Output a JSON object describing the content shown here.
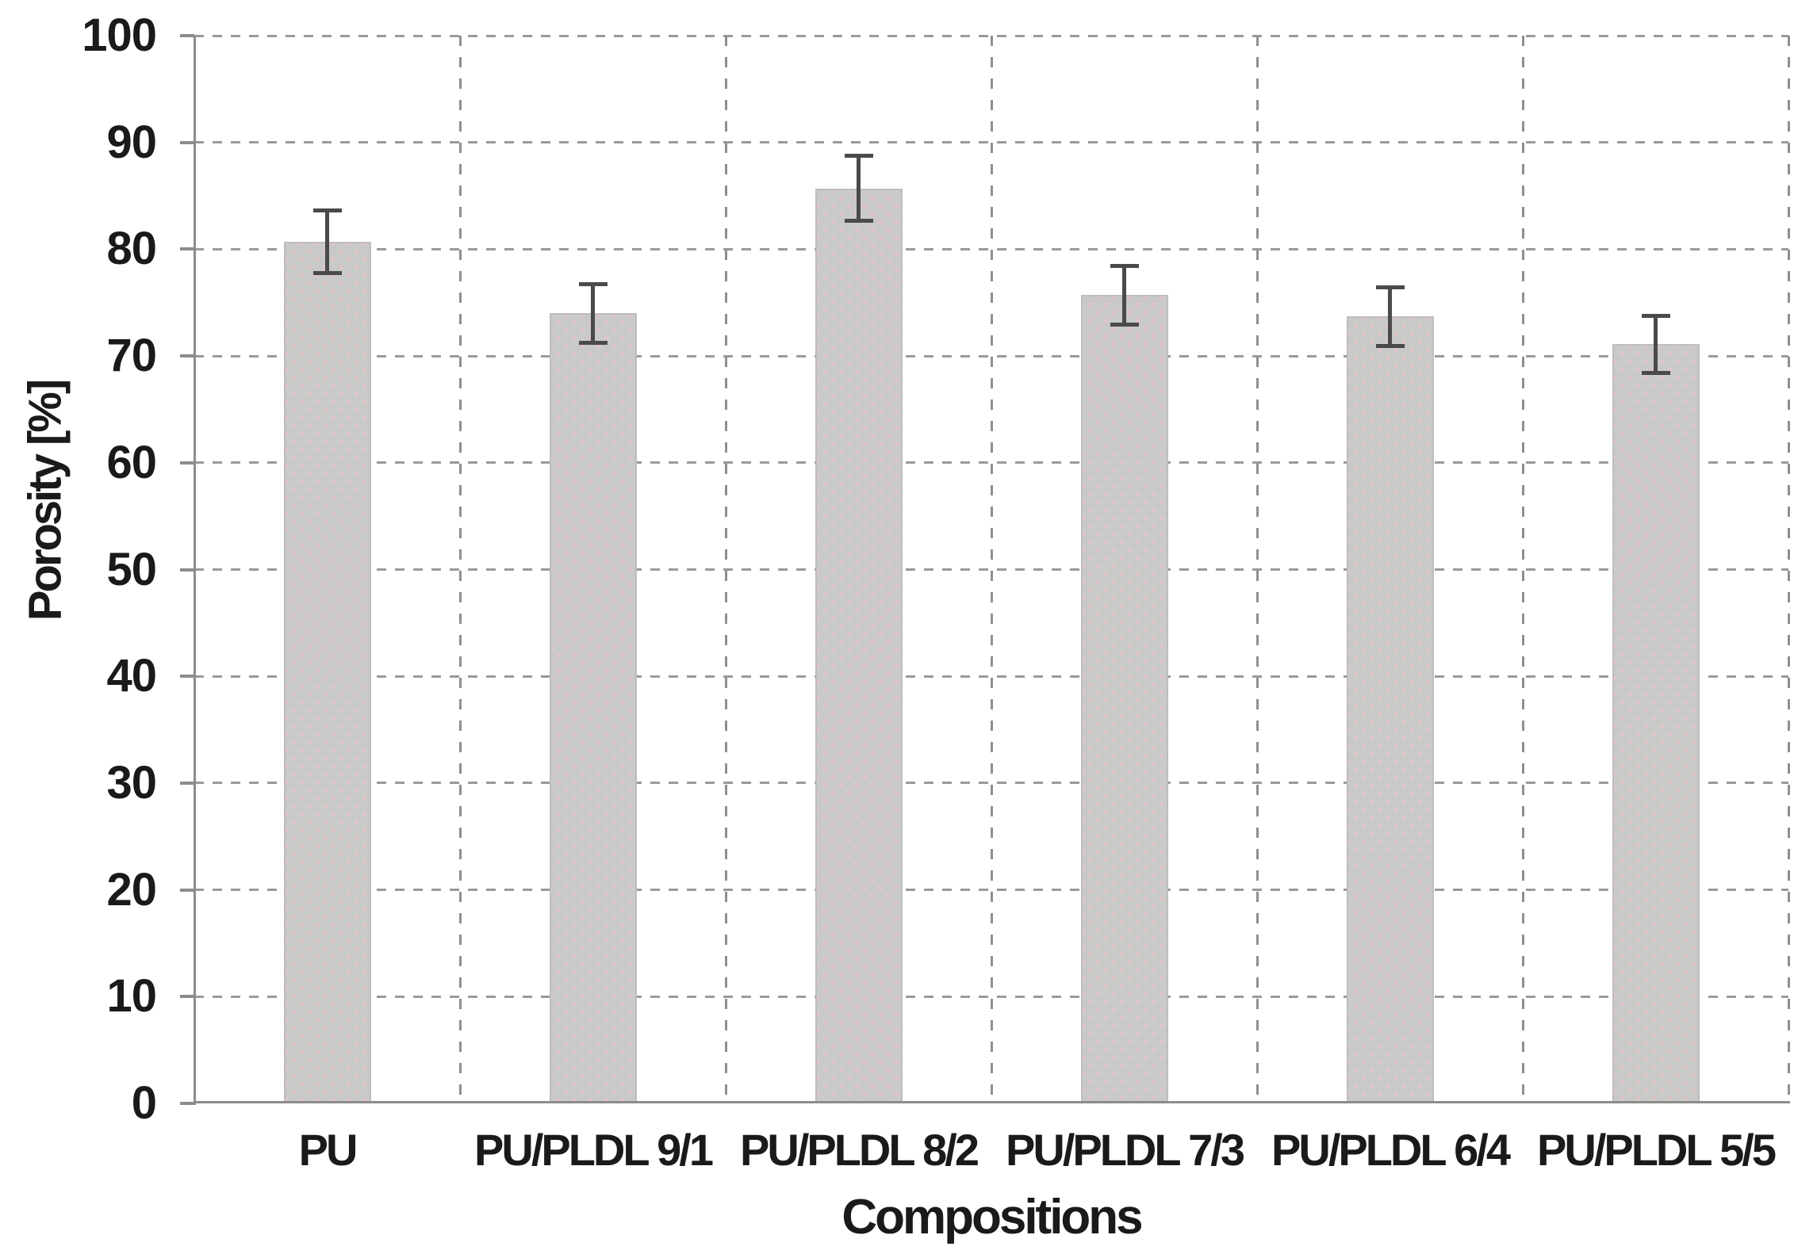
{
  "chart_data": {
    "type": "bar",
    "title": "",
    "xlabel": "Compositions",
    "ylabel": "Porosity [%]",
    "categories": [
      "PU",
      "PU/PLDL 9/1",
      "PU/PLDL 8/2",
      "PU/PLDL 7/3",
      "PU/PLDL 6/4",
      "PU/PLDL 5/5"
    ],
    "values": [
      80.7,
      74.0,
      85.7,
      75.7,
      73.7,
      71.1
    ],
    "error_bars": [
      3.0,
      2.8,
      3.1,
      2.8,
      2.8,
      2.7
    ],
    "ylim": [
      0,
      100
    ],
    "ytick_step": 10,
    "yticks": [
      "0",
      "10",
      "20",
      "30",
      "40",
      "50",
      "60",
      "70",
      "80",
      "90",
      "100"
    ],
    "grid": {
      "horizontal": "dashed at every ytick",
      "vertical": "dashed at category boundaries and right edge",
      "style": "dashed"
    },
    "legend": "none",
    "colors": {
      "bar_fill": "#c9c9c9",
      "bar_stipple": "#e9c4c4",
      "bar_edge": "#bdbdbd",
      "error_bar": "#4a4a4a",
      "grid_line": "#9a9a9a",
      "axis_line": "#8c8c8c",
      "text": "#1a1a1a",
      "background": "#ffffff"
    }
  }
}
